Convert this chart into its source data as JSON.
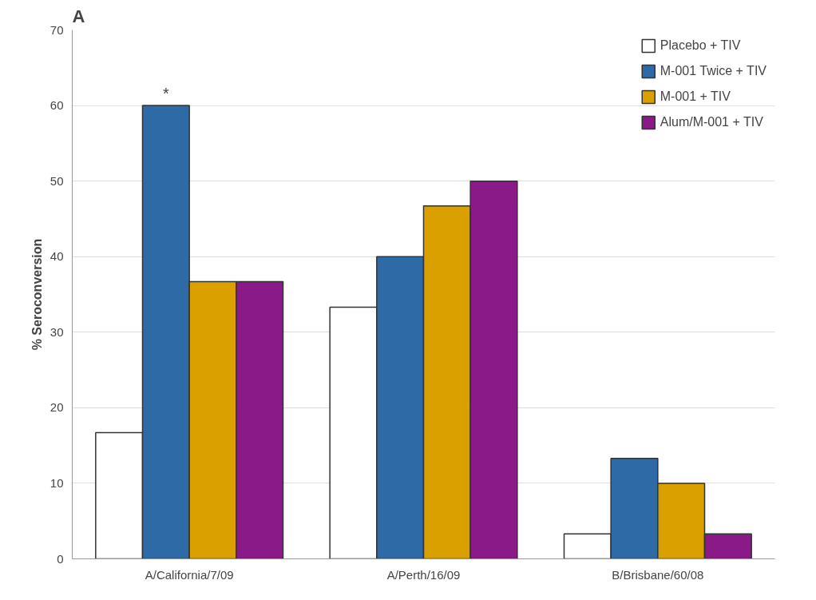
{
  "chart_data": {
    "type": "bar",
    "title": "A",
    "ylabel": "% Seroconversion",
    "categories": [
      "A/California/7/09",
      "A/Perth/16/09",
      "B/Brisbane/60/08"
    ],
    "series": [
      {
        "name": "Placebo + TIV",
        "color": "#ffffff",
        "values": [
          16.7,
          33.3,
          3.3
        ]
      },
      {
        "name": "M-001 Twice + TIV",
        "color": "#2e6aa6",
        "values": [
          60,
          40,
          13.3
        ]
      },
      {
        "name": "M-001 + TIV",
        "color": "#d9a000",
        "values": [
          36.7,
          46.7,
          10
        ]
      },
      {
        "name": "Alum/M-001 + TIV",
        "color": "#8a1a88",
        "values": [
          36.7,
          50,
          3.3
        ]
      }
    ],
    "ylim": [
      0,
      70
    ],
    "yticks": [
      0,
      10,
      20,
      30,
      40,
      50,
      60,
      70
    ],
    "grid": "y",
    "legend": "top right",
    "annotations": [
      {
        "text": "*",
        "x": "A/California/7/09",
        "y": 60
      }
    ]
  }
}
